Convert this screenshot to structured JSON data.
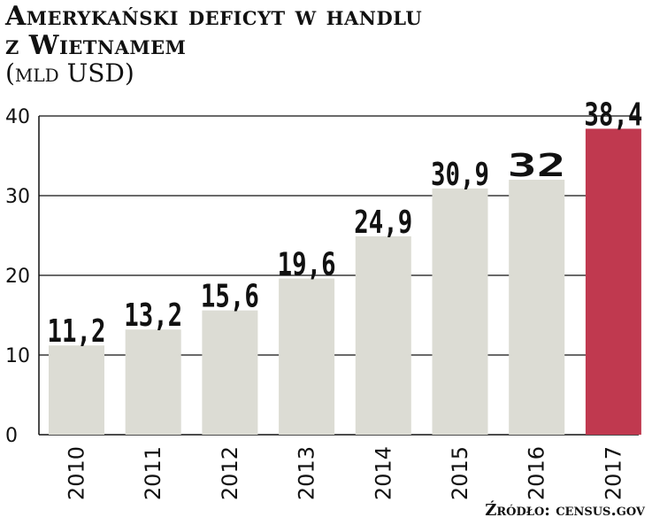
{
  "chart_data": {
    "type": "bar",
    "title_line1": "Amerykański deficyt w handlu",
    "title_line2": "z Wietnamem",
    "unit": "(mld USD)",
    "categories": [
      "2010",
      "2011",
      "2012",
      "2013",
      "2014",
      "2015",
      "2016",
      "2017"
    ],
    "values": [
      11.2,
      13.2,
      15.6,
      19.6,
      24.9,
      30.9,
      32,
      38.4
    ],
    "value_labels": [
      "11,2",
      "13,2",
      "15,6",
      "19,6",
      "24,9",
      "30,9",
      "32",
      "38,4"
    ],
    "y_ticks": [
      0,
      10,
      20,
      30,
      40
    ],
    "ylim": [
      0,
      40
    ],
    "grid": true,
    "colors": {
      "default_bar": "#dcdcd4",
      "highlight_bar": "#c0394f",
      "grid": "#111111"
    },
    "highlight_index": 7,
    "source": "Źródło: census.gov"
  }
}
